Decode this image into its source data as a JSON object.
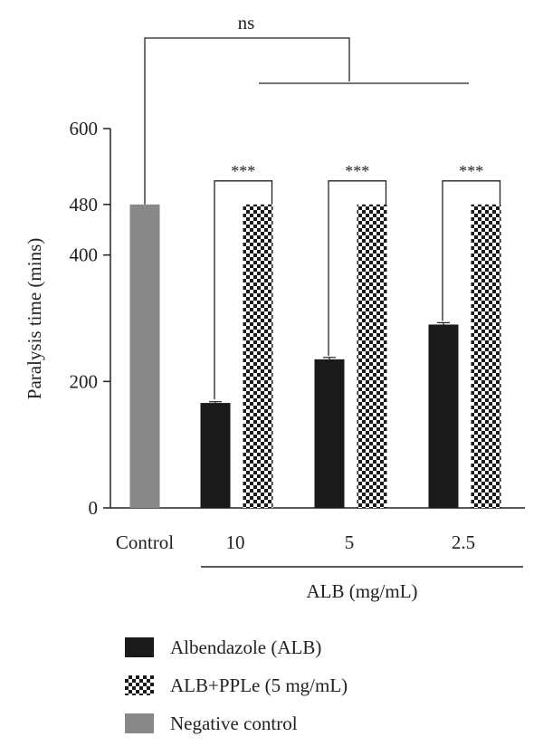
{
  "chart_data": {
    "type": "bar",
    "ylabel": "Paralysis time (mins)",
    "xlabel": "ALB (mg/mL)",
    "ylim": [
      0,
      600
    ],
    "yticks": [
      0,
      200,
      400,
      480,
      600
    ],
    "categories": [
      "Control",
      "10",
      "5",
      "2.5"
    ],
    "series": [
      {
        "name": "Albendazole (ALB)",
        "color": "#1a1a1a",
        "pattern": "solid",
        "values": [
          null,
          166,
          235,
          290
        ],
        "errors": [
          null,
          2,
          3,
          3
        ]
      },
      {
        "name": "ALB+PPLe (5 mg/mL)",
        "color": "#1a1a1a",
        "pattern": "checker",
        "values": [
          null,
          480,
          480,
          480
        ],
        "errors": [
          null,
          0,
          0,
          0
        ]
      },
      {
        "name": "Negative control",
        "color": "#888888",
        "pattern": "solid",
        "values": [
          480,
          null,
          null,
          null
        ],
        "errors": [
          0,
          null,
          null,
          null
        ]
      }
    ],
    "significance": [
      {
        "label": "***",
        "category": "10"
      },
      {
        "label": "***",
        "category": "5"
      },
      {
        "label": "***",
        "category": "2.5"
      },
      {
        "label": "ns",
        "category": "Control vs ALB groups"
      }
    ],
    "legend_position": "bottom-left",
    "grid": false
  }
}
